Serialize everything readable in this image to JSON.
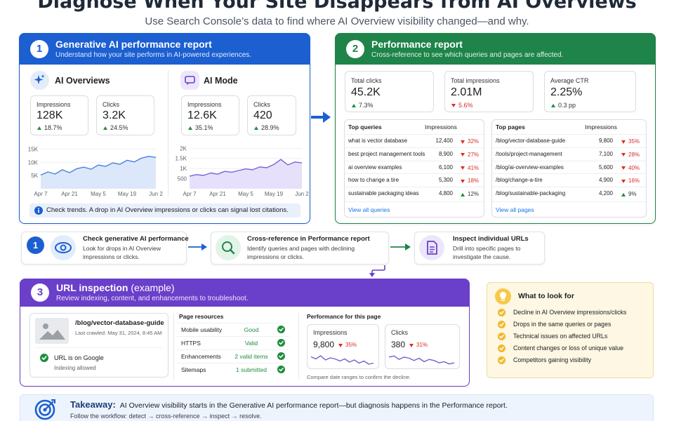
{
  "header": {
    "title": "Diagnose When Your Site Disappears from AI Overviews",
    "subtitle": "Use Search Console’s data to find where AI Overview visibility changed—and why."
  },
  "panel1": {
    "number": "1",
    "title": "Generative AI performance report",
    "subtitle": "Understand how your site performs in AI-powered experiences.",
    "sections": [
      {
        "name": "AI Overviews",
        "metrics": [
          {
            "label": "Impressions",
            "value": "128K",
            "change": "18.7%",
            "direction": "up"
          },
          {
            "label": "Clicks",
            "value": "3.2K",
            "change": "24.5%",
            "direction": "up"
          }
        ],
        "chart": {
          "type": "area",
          "color": "#4a7fe0",
          "fill": "#dde7fa",
          "grid": true,
          "categories": [
            "Apr 7",
            null,
            null,
            null,
            "Apr 21",
            null,
            null,
            null,
            "May 5",
            null,
            null,
            null,
            "May 19",
            null,
            null,
            null,
            "Jun 2"
          ],
          "values": [
            5200,
            6400,
            5600,
            7200,
            6100,
            7600,
            8200,
            7400,
            9000,
            8500,
            9800,
            9300,
            10800,
            10200,
            11600,
            12300,
            11900
          ],
          "ylim": [
            0,
            16500
          ],
          "yticks": [
            {
              "value": 5000,
              "label": "5K"
            },
            {
              "value": 10000,
              "label": "10K"
            },
            {
              "value": 15000,
              "label": "15K"
            }
          ]
        }
      },
      {
        "name": "AI Mode",
        "metrics": [
          {
            "label": "Impressions",
            "value": "12.6K",
            "change": "35.1%",
            "direction": "up"
          },
          {
            "label": "Clicks",
            "value": "420",
            "change": "28.9%",
            "direction": "up"
          }
        ],
        "chart": {
          "type": "area",
          "color": "#7b61d9",
          "fill": "#e7e0fa",
          "grid": true,
          "categories": [
            "Apr 7",
            null,
            null,
            null,
            "Apr 21",
            null,
            null,
            null,
            "May 5",
            null,
            null,
            null,
            "May 19",
            null,
            null,
            null,
            "Jun 2"
          ],
          "values": [
            620,
            700,
            660,
            780,
            720,
            860,
            820,
            900,
            980,
            940,
            1080,
            1040,
            1200,
            1450,
            1180,
            1320,
            1280
          ],
          "ylim": [
            0,
            2150
          ],
          "yticks": [
            500,
            {
              "value": 1000,
              "label": "1K"
            },
            {
              "value": 1500,
              "label": "1.5K"
            },
            {
              "value": 2000,
              "label": "2K"
            }
          ]
        }
      }
    ],
    "note": "Check trends. A drop in AI Overview impressions or clicks can signal lost citations."
  },
  "panel2": {
    "number": "2",
    "title": "Performance report",
    "subtitle": "Cross-reference to see which queries and pages are affected.",
    "metrics": [
      {
        "label": "Total clicks",
        "value": "45.2K",
        "change": "7.3%",
        "direction": "up"
      },
      {
        "label": "Total impressions",
        "value": "2.01M",
        "change": "5.6%",
        "direction": "down"
      },
      {
        "label": "Average CTR",
        "value": "2.25%",
        "change": "0.3 pp",
        "direction": "up"
      }
    ],
    "tables": [
      {
        "columns": [
          "Top queries",
          "Impressions"
        ],
        "rows": [
          {
            "name": "what is vector database",
            "impressions": "12,400",
            "change": "32%",
            "direction": "down"
          },
          {
            "name": "best project management tools",
            "impressions": "8,900",
            "change": "27%",
            "direction": "down"
          },
          {
            "name": "ai overview examples",
            "impressions": "6,100",
            "change": "41%",
            "direction": "down"
          },
          {
            "name": "how to change a tire",
            "impressions": "5,300",
            "change": "18%",
            "direction": "down"
          },
          {
            "name": "sustainable packaging ideas",
            "impressions": "4,800",
            "change": "12%",
            "direction": "up"
          }
        ],
        "link": "View all queries"
      },
      {
        "columns": [
          "Top pages",
          "Impressions"
        ],
        "rows": [
          {
            "name": "/blog/vector-database-guide",
            "impressions": "9,800",
            "change": "35%",
            "direction": "down"
          },
          {
            "name": "/tools/project-management",
            "impressions": "7,100",
            "change": "28%",
            "direction": "down"
          },
          {
            "name": "/blog/ai-overview-examples",
            "impressions": "5,600",
            "change": "40%",
            "direction": "down"
          },
          {
            "name": "/blog/change-a-tire",
            "impressions": "4,900",
            "change": "16%",
            "direction": "down"
          },
          {
            "name": "/blog/sustainable-packaging",
            "impressions": "4,200",
            "change": "9%",
            "direction": "up"
          }
        ],
        "link": "View all pages"
      }
    ]
  },
  "workflow": {
    "steps": [
      {
        "number": "1",
        "title": "Check generative AI performance",
        "description": [
          "Look for drops in AI Overview",
          "impressions or clicks."
        ]
      },
      {
        "title": "Cross-reference in Performance report",
        "description": [
          "Identify queries and pages with declining",
          "impressions or clicks."
        ]
      },
      {
        "title": "Inspect individual URLs",
        "description": [
          "Drill into specific pages to",
          "investigate the cause."
        ]
      }
    ]
  },
  "panel3": {
    "number": "3",
    "title": "URL inspection",
    "title_note": "(example)",
    "subtitle": "Review indexing, content, and enhancements to troubleshoot.",
    "url_card": {
      "url": "/blog/vector-database-guide",
      "crawled": "Last crawled: May 31, 2024, 8:45 AM",
      "status": "URL is on Google",
      "status_detail": "Indexing allowed"
    },
    "resources": {
      "title": "Page resources",
      "rows": [
        {
          "label": "Mobile usability",
          "value": "Good"
        },
        {
          "label": "HTTPS",
          "value": "Valid"
        },
        {
          "label": "Enhancements",
          "value": "2 valid items"
        },
        {
          "label": "Sitemaps",
          "value": "1 submitted"
        }
      ]
    },
    "performance": {
      "title": "Performance for this page",
      "cards": [
        {
          "label": "Impressions",
          "value": "9,800",
          "change": "35%",
          "direction": "down",
          "chart": {
            "type": "line",
            "color": "#7a5cd0",
            "values": [
              14,
              12,
              15,
              11,
              13,
              12,
              10,
              12,
              9,
              11,
              8,
              10,
              7,
              8
            ],
            "ylim": [
              5,
              17
            ]
          }
        },
        {
          "label": "Clicks",
          "value": "380",
          "change": "31%",
          "direction": "down",
          "chart": {
            "type": "line",
            "color": "#7a5cd0",
            "values": [
              13,
              14,
              11,
              13,
              12,
              10,
              12,
              9,
              11,
              10,
              8,
              9,
              7,
              8
            ],
            "ylim": [
              5,
              16
            ]
          }
        }
      ],
      "note": "Compare date ranges to confirm the decline."
    }
  },
  "what_to_look_for": {
    "title": "What to look for",
    "items": [
      "Decline in AI Overview impressions/clicks",
      "Drops in the same queries or pages",
      "Technical issues on affected URLs",
      "Content changes or loss of unique value",
      "Competitors gaining visibility"
    ]
  },
  "takeaway": {
    "label": "Takeaway:",
    "text": "AI Overview visibility starts in the Generative AI performance report—but diagnosis happens in the Performance report.",
    "detail": "Follow the workflow: detect → cross-reference → inspect → resolve."
  }
}
